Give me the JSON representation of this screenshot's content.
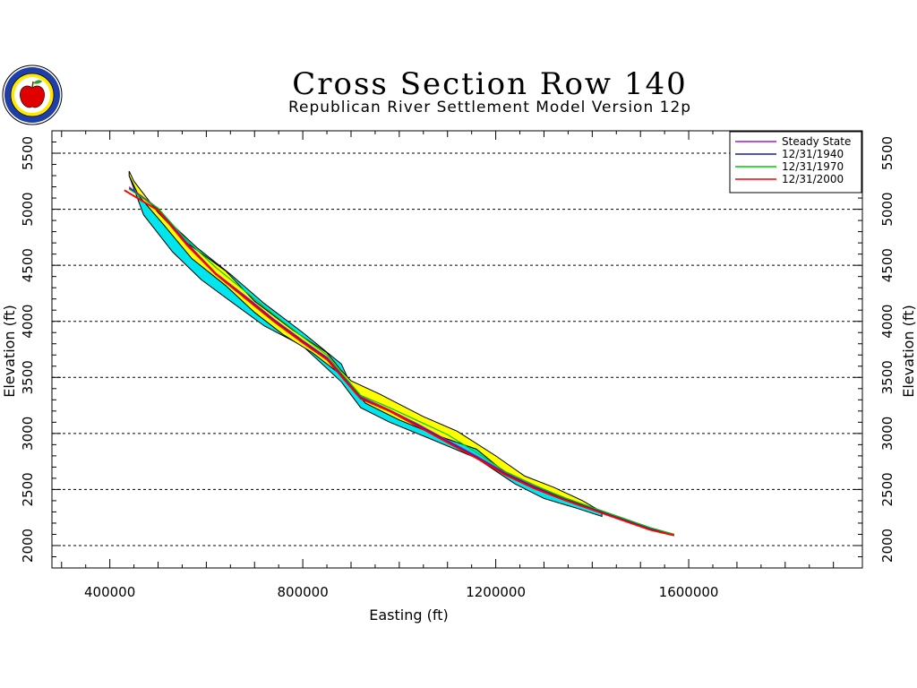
{
  "header": {
    "title": "Cross Section Row 140",
    "subtitle": "Republican River Settlement Model Version 12p"
  },
  "colors": {
    "steady_state": "#9a1fbf",
    "y1940": "#1a1aa8",
    "y1970": "#00c800",
    "y2000": "#ff0000",
    "band_yellow": "#ffff00",
    "band_cyan": "#00e5ee",
    "outline": "#000000"
  },
  "chart_data": {
    "type": "line",
    "title": "Cross Section Row 140",
    "subtitle": "Republican River Settlement Model Version 12p",
    "xlabel": "Easting (ft)",
    "ylabel": "Elevation (ft)",
    "xlim": [
      280000,
      1960000
    ],
    "ylim": [
      1800,
      5700
    ],
    "x_ticks": [
      400000,
      800000,
      1200000,
      1600000
    ],
    "x_tick_labels": [
      "400000",
      "800000",
      "1200000",
      "1600000"
    ],
    "y_ticks": [
      2000,
      2500,
      3000,
      3500,
      4000,
      4500,
      5000,
      5500
    ],
    "y_tick_labels": [
      "2000",
      "2500",
      "3000",
      "3500",
      "4000",
      "4500",
      "5000",
      "5500"
    ],
    "grid": "horizontal dashed",
    "legend_position": "top-right",
    "legend": [
      "Steady State",
      "12/31/1940",
      "12/31/1970",
      "12/31/2000"
    ],
    "yellow_band": {
      "x": [
        440000,
        450000,
        500000,
        560000,
        640000,
        700000,
        780000,
        850000,
        880000,
        900000,
        960000,
        1050000,
        1120000,
        1200000,
        1260000,
        1320000,
        1380000,
        1420000,
        1420000,
        1380000,
        1330000,
        1270000,
        1220000,
        1160000,
        1080000,
        1000000,
        930000,
        880000,
        820000,
        760000,
        700000,
        640000,
        570000,
        510000,
        460000,
        440000
      ],
      "y": [
        5340,
        5250,
        4970,
        4700,
        4450,
        4180,
        3920,
        3720,
        3560,
        3470,
        3350,
        3150,
        3020,
        2800,
        2620,
        2520,
        2400,
        2300,
        2290,
        2360,
        2450,
        2540,
        2650,
        2860,
        2980,
        3120,
        3270,
        3520,
        3720,
        3880,
        4080,
        4320,
        4560,
        4870,
        5120,
        5300
      ]
    },
    "cyan_band": {
      "x": [
        440000,
        460000,
        520000,
        580000,
        650000,
        720000,
        800000,
        880000,
        900000,
        960000,
        1050000,
        1150000,
        1230000,
        1300000,
        1370000,
        1420000,
        1420000,
        1370000,
        1300000,
        1240000,
        1160000,
        1060000,
        980000,
        920000,
        880000,
        800000,
        720000,
        650000,
        590000,
        530000,
        470000,
        440000
      ],
      "y": [
        5300,
        5150,
        4900,
        4660,
        4420,
        4160,
        3900,
        3620,
        3430,
        3320,
        3120,
        2920,
        2690,
        2520,
        2400,
        2300,
        2260,
        2330,
        2420,
        2550,
        2780,
        2960,
        3100,
        3230,
        3460,
        3780,
        3960,
        4180,
        4370,
        4620,
        4950,
        5300
      ]
    },
    "series": [
      {
        "name": "Steady State",
        "x": [
          440000,
          500000,
          560000,
          620000,
          680000,
          740000,
          800000,
          850000,
          880000,
          920000,
          980000,
          1040000,
          1100000,
          1160000,
          1220000,
          1280000,
          1340000,
          1400000,
          1460000,
          1520000,
          1570000
        ],
        "y": [
          5200,
          5010,
          4700,
          4430,
          4230,
          4020,
          3830,
          3680,
          3530,
          3330,
          3210,
          3080,
          2940,
          2800,
          2650,
          2530,
          2430,
          2340,
          2250,
          2160,
          2100
        ]
      },
      {
        "name": "12/31/1940",
        "x": [
          440000,
          500000,
          560000,
          620000,
          680000,
          740000,
          800000,
          850000,
          880000,
          920000,
          980000,
          1040000,
          1100000,
          1160000,
          1220000,
          1280000,
          1340000,
          1400000,
          1460000,
          1520000,
          1570000
        ],
        "y": [
          5190,
          5000,
          4690,
          4420,
          4220,
          4010,
          3820,
          3670,
          3520,
          3320,
          3200,
          3070,
          2930,
          2790,
          2640,
          2520,
          2420,
          2330,
          2240,
          2150,
          2100
        ]
      },
      {
        "name": "12/31/1970",
        "x": [
          440000,
          500000,
          560000,
          620000,
          680000,
          740000,
          800000,
          850000,
          880000,
          920000,
          980000,
          1040000,
          1100000,
          1160000,
          1220000,
          1280000,
          1340000,
          1400000,
          1460000,
          1520000,
          1570000
        ],
        "y": [
          5180,
          5010,
          4720,
          4480,
          4270,
          4060,
          3860,
          3700,
          3540,
          3340,
          3230,
          3110,
          2990,
          2830,
          2660,
          2540,
          2430,
          2340,
          2250,
          2160,
          2100
        ]
      },
      {
        "name": "12/31/2000",
        "x": [
          430000,
          500000,
          560000,
          620000,
          680000,
          740000,
          800000,
          850000,
          880000,
          920000,
          980000,
          1040000,
          1100000,
          1160000,
          1220000,
          1280000,
          1340000,
          1400000,
          1460000,
          1520000,
          1570000
        ],
        "y": [
          5170,
          4990,
          4680,
          4420,
          4210,
          4000,
          3810,
          3660,
          3510,
          3310,
          3200,
          3060,
          2920,
          2780,
          2630,
          2510,
          2410,
          2320,
          2230,
          2140,
          2090
        ]
      }
    ]
  }
}
